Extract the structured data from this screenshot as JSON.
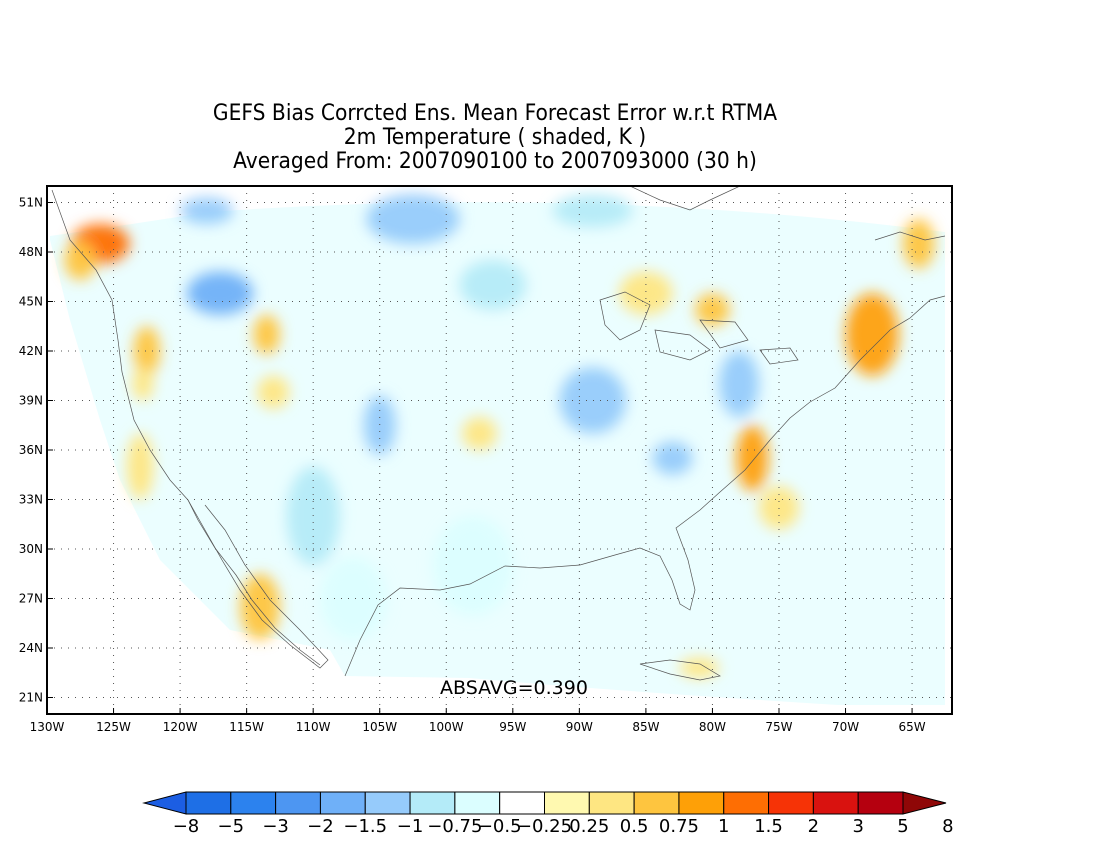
{
  "title": {
    "line1": "GEFS Bias Corrcted Ens. Mean Forecast Error w.r.t RTMA",
    "line2": "2m Temperature ( shaded, K )",
    "line3": "Averaged From: 2007090100 to 2007093000 (30 h)"
  },
  "map": {
    "lon_range": [
      -130,
      -62
    ],
    "lat_range": [
      20,
      52
    ],
    "lon_ticks": [
      {
        "value": -130,
        "label": "130W"
      },
      {
        "value": -125,
        "label": "125W"
      },
      {
        "value": -120,
        "label": "120W"
      },
      {
        "value": -115,
        "label": "115W"
      },
      {
        "value": -110,
        "label": "110W"
      },
      {
        "value": -105,
        "label": "105W"
      },
      {
        "value": -100,
        "label": "100W"
      },
      {
        "value": -95,
        "label": "95W"
      },
      {
        "value": -90,
        "label": "90W"
      },
      {
        "value": -85,
        "label": "85W"
      },
      {
        "value": -80,
        "label": "80W"
      },
      {
        "value": -75,
        "label": "75W"
      },
      {
        "value": -70,
        "label": "70W"
      },
      {
        "value": -65,
        "label": "65W"
      }
    ],
    "lat_ticks": [
      {
        "value": 21,
        "label": "21N"
      },
      {
        "value": 24,
        "label": "24N"
      },
      {
        "value": 27,
        "label": "27N"
      },
      {
        "value": 30,
        "label": "30N"
      },
      {
        "value": 33,
        "label": "33N"
      },
      {
        "value": 36,
        "label": "36N"
      },
      {
        "value": 39,
        "label": "39N"
      },
      {
        "value": 42,
        "label": "42N"
      },
      {
        "value": 45,
        "label": "45N"
      },
      {
        "value": 48,
        "label": "48N"
      },
      {
        "value": 51,
        "label": "51N"
      }
    ],
    "gridlines": "dotted",
    "absavg_label": "ABSAVG=0.390",
    "field_regions": [
      {
        "lon": -126,
        "lat": 48.5,
        "rlon": 2.2,
        "rlat": 1.2,
        "value": 1.5
      },
      {
        "lon": -127.5,
        "lat": 47.5,
        "rlon": 1.2,
        "rlat": 1.2,
        "value": 0.75
      },
      {
        "lon": -122.5,
        "lat": 42,
        "rlon": 1.0,
        "rlat": 1.5,
        "value": 0.75
      },
      {
        "lon": -122.8,
        "lat": 40,
        "rlon": 0.8,
        "rlat": 1.0,
        "value": 0.5
      },
      {
        "lon": -123,
        "lat": 35,
        "rlon": 1.0,
        "rlat": 2.0,
        "value": 0.5
      },
      {
        "lon": -117,
        "lat": 45.5,
        "rlon": 2.5,
        "rlat": 1.3,
        "value": -1.5
      },
      {
        "lon": -118,
        "lat": 50.5,
        "rlon": 2.0,
        "rlat": 0.8,
        "value": -1
      },
      {
        "lon": -113.5,
        "lat": 43,
        "rlon": 1.0,
        "rlat": 1.2,
        "value": 0.75
      },
      {
        "lon": -113,
        "lat": 39.5,
        "rlon": 1.2,
        "rlat": 1.0,
        "value": 0.5
      },
      {
        "lon": -102.5,
        "lat": 50,
        "rlon": 3.5,
        "rlat": 1.5,
        "value": -1
      },
      {
        "lon": -96.5,
        "lat": 46,
        "rlon": 2.5,
        "rlat": 1.5,
        "value": -0.75
      },
      {
        "lon": -105,
        "lat": 37.5,
        "rlon": 1.2,
        "rlat": 1.8,
        "value": -1
      },
      {
        "lon": -110,
        "lat": 32,
        "rlon": 2.0,
        "rlat": 3.0,
        "value": -0.75
      },
      {
        "lon": -107,
        "lat": 27,
        "rlon": 2.5,
        "rlat": 2.5,
        "value": -0.5
      },
      {
        "lon": -98,
        "lat": 29,
        "rlon": 3.0,
        "rlat": 3.0,
        "value": -0.5
      },
      {
        "lon": -89,
        "lat": 39,
        "rlon": 2.5,
        "rlat": 2.0,
        "value": -1
      },
      {
        "lon": -83,
        "lat": 35.5,
        "rlon": 1.5,
        "rlat": 1.0,
        "value": -1
      },
      {
        "lon": -78,
        "lat": 40,
        "rlon": 1.5,
        "rlat": 2.0,
        "value": -1
      },
      {
        "lon": -89,
        "lat": 50.5,
        "rlon": 3.0,
        "rlat": 1.0,
        "value": -0.75
      },
      {
        "lon": -85,
        "lat": 45.5,
        "rlon": 2.0,
        "rlat": 1.3,
        "value": 0.5
      },
      {
        "lon": -80,
        "lat": 44.5,
        "rlon": 1.3,
        "rlat": 1.0,
        "value": 0.75
      },
      {
        "lon": -77,
        "lat": 35.5,
        "rlon": 1.2,
        "rlat": 2.0,
        "value": 1
      },
      {
        "lon": -75,
        "lat": 32.5,
        "rlon": 1.5,
        "rlat": 1.3,
        "value": 0.5
      },
      {
        "lon": -68,
        "lat": 43,
        "rlon": 2.0,
        "rlat": 2.5,
        "value": 1
      },
      {
        "lon": -64.5,
        "lat": 48.5,
        "rlon": 1.2,
        "rlat": 1.5,
        "value": 0.75
      },
      {
        "lon": -97.5,
        "lat": 37,
        "rlon": 1.3,
        "rlat": 1.0,
        "value": 0.5
      },
      {
        "lon": -114,
        "lat": 26.5,
        "rlon": 1.5,
        "rlat": 2.0,
        "value": 0.75
      },
      {
        "lon": -81,
        "lat": 22.8,
        "rlon": 1.5,
        "rlat": 0.6,
        "value": 0.5
      }
    ]
  },
  "colorbar": {
    "labels": [
      "-8",
      "-5",
      "-3",
      "-2",
      "-1.5",
      "-1",
      "-0.75",
      "-0.5",
      "-0.25",
      "0.25",
      "0.5",
      "0.75",
      "1",
      "1.5",
      "2",
      "3",
      "5",
      "8"
    ],
    "colors": [
      "#1c5ee3",
      "#1e6fe6",
      "#2c82ee",
      "#4d96f2",
      "#6fb0f8",
      "#96cbfb",
      "#b4ebf8",
      "#dbfeff",
      "#ffffff",
      "#fff9b0",
      "#fee682",
      "#fec53f",
      "#fea007",
      "#fe6e03",
      "#f63306",
      "#d9120f",
      "#b5000f",
      "#8f0707"
    ]
  }
}
